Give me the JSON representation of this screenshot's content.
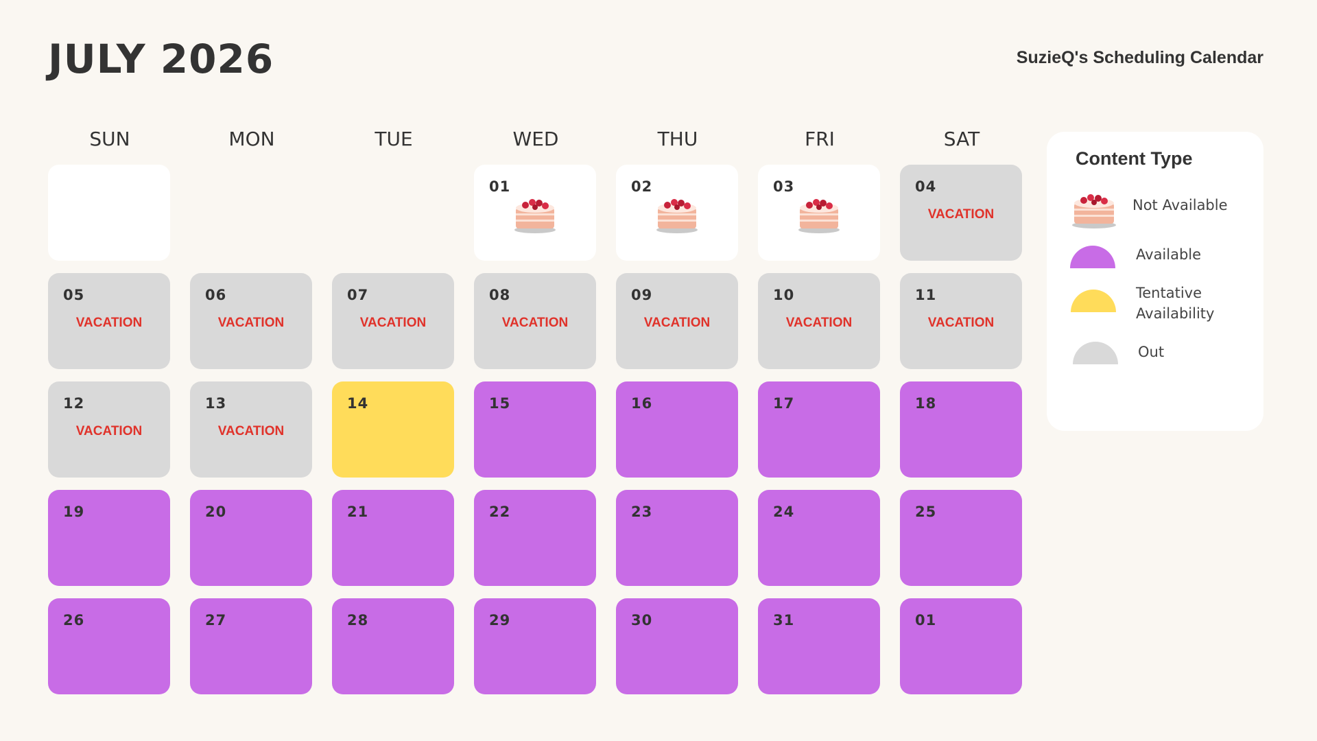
{
  "header": {
    "title": "JULY 2026",
    "subtitle": "SuzieQ's Scheduling Calendar"
  },
  "weekdays": [
    "SUN",
    "MON",
    "TUE",
    "WED",
    "THU",
    "FRI",
    "SAT"
  ],
  "vacation_label": "VACATION",
  "colors": {
    "not_available": "#ffffff",
    "available": "#c86ce6",
    "tentative": "#ffdc5a",
    "out": "#d9d9d9",
    "vacation_text": "#e0322a",
    "background": "#faf7f2"
  },
  "days": [
    {
      "num": "",
      "status": "blank"
    },
    {
      "num": "01",
      "status": "not-available",
      "icon": "cake-icon"
    },
    {
      "num": "02",
      "status": "not-available",
      "icon": "cake-icon"
    },
    {
      "num": "03",
      "status": "not-available",
      "icon": "cake-icon"
    },
    {
      "num": "04",
      "status": "out",
      "note": "VACATION"
    },
    {
      "num": "05",
      "status": "out",
      "note": "VACATION"
    },
    {
      "num": "06",
      "status": "out",
      "note": "VACATION"
    },
    {
      "num": "07",
      "status": "out",
      "note": "VACATION"
    },
    {
      "num": "08",
      "status": "out",
      "note": "VACATION"
    },
    {
      "num": "09",
      "status": "out",
      "note": "VACATION"
    },
    {
      "num": "10",
      "status": "out",
      "note": "VACATION"
    },
    {
      "num": "11",
      "status": "out",
      "note": "VACATION"
    },
    {
      "num": "12",
      "status": "out",
      "note": "VACATION"
    },
    {
      "num": "13",
      "status": "out",
      "note": "VACATION"
    },
    {
      "num": "14",
      "status": "tentative"
    },
    {
      "num": "15",
      "status": "available"
    },
    {
      "num": "16",
      "status": "available"
    },
    {
      "num": "17",
      "status": "available"
    },
    {
      "num": "18",
      "status": "available"
    },
    {
      "num": "19",
      "status": "available"
    },
    {
      "num": "20",
      "status": "available"
    },
    {
      "num": "21",
      "status": "available"
    },
    {
      "num": "22",
      "status": "available"
    },
    {
      "num": "23",
      "status": "available"
    },
    {
      "num": "24",
      "status": "available"
    },
    {
      "num": "25",
      "status": "available"
    },
    {
      "num": "26",
      "status": "available"
    },
    {
      "num": "27",
      "status": "available"
    },
    {
      "num": "28",
      "status": "available"
    },
    {
      "num": "29",
      "status": "available"
    },
    {
      "num": "30",
      "status": "available"
    },
    {
      "num": "31",
      "status": "available"
    },
    {
      "num": "01",
      "status": "available"
    }
  ],
  "legend": {
    "title": "Content Type",
    "items": [
      {
        "label": "Not Available",
        "icon": "cake-icon"
      },
      {
        "label": "Available",
        "icon": "purple-half-circle-icon"
      },
      {
        "label": "Tentative Availability",
        "icon": "yellow-half-circle-icon"
      },
      {
        "label": "Out",
        "icon": "gray-half-circle-icon"
      }
    ]
  }
}
